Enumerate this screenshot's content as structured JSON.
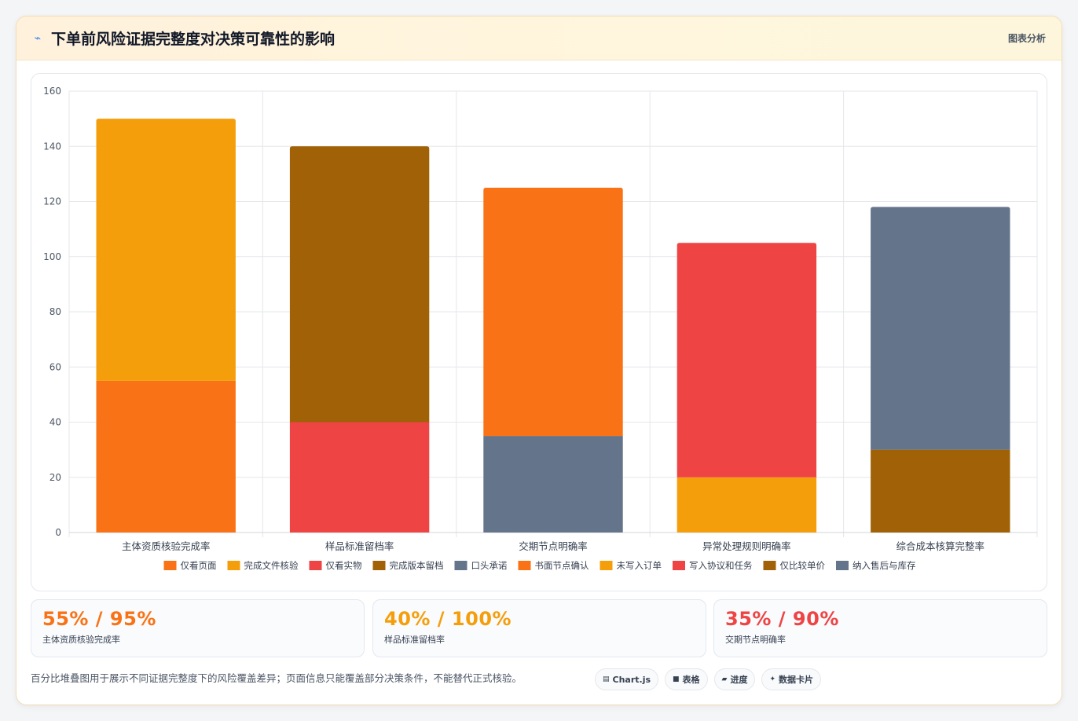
{
  "header": {
    "title": "下单前风险证据完整度对决策可靠性的影响",
    "title_icon": "bolt-icon",
    "link_label": "图表分析"
  },
  "chart_data": {
    "type": "bar",
    "stacked": true,
    "categories": [
      "主体资质核验完成率",
      "样品标准留档率",
      "交期节点明确率",
      "异常处理规则明确率",
      "综合成本核算完整率"
    ],
    "ylim": [
      0,
      160
    ],
    "yticks": [
      0,
      20,
      40,
      60,
      80,
      100,
      120,
      140,
      160
    ],
    "grid": true,
    "legend_position": "bottom",
    "series": [
      {
        "name": "仅看页面",
        "color": "#f97316",
        "values": [
          55,
          null,
          null,
          null,
          null
        ]
      },
      {
        "name": "完成文件核验",
        "color": "#f59e0b",
        "values": [
          95,
          null,
          null,
          null,
          null
        ]
      },
      {
        "name": "仅看实物",
        "color": "#ef4444",
        "values": [
          null,
          40,
          null,
          null,
          null
        ]
      },
      {
        "name": "完成版本留档",
        "color": "#a16207",
        "values": [
          null,
          100,
          null,
          null,
          null
        ]
      },
      {
        "name": "口头承诺",
        "color": "#64748b",
        "values": [
          null,
          null,
          35,
          null,
          null
        ]
      },
      {
        "name": "书面节点确认",
        "color": "#f97316",
        "values": [
          null,
          null,
          90,
          null,
          null
        ]
      },
      {
        "name": "未写入订单",
        "color": "#f59e0b",
        "values": [
          null,
          null,
          null,
          20,
          null
        ]
      },
      {
        "name": "写入协议和任务",
        "color": "#ef4444",
        "values": [
          null,
          null,
          null,
          85,
          null
        ]
      },
      {
        "name": "仅比较单价",
        "color": "#a16207",
        "values": [
          null,
          null,
          null,
          null,
          30
        ]
      },
      {
        "name": "纳入售后与库存",
        "color": "#64748b",
        "values": [
          null,
          null,
          null,
          null,
          88
        ]
      }
    ]
  },
  "kpis": [
    {
      "value": "55% / 95%",
      "label": "主体资质核验完成率",
      "color": "#f97316"
    },
    {
      "value": "40% / 100%",
      "label": "样品标准留档率",
      "color": "#f59e0b"
    },
    {
      "value": "35% / 90%",
      "label": "交期节点明确率",
      "color": "#ef4444"
    }
  ],
  "footer": {
    "note": "百分比堆叠图用于展示不同证据完整度下的风险覆盖差异；页面信息只能覆盖部分决策条件，不能替代正式核验。",
    "pills": [
      {
        "label": "Chart.js",
        "icon": "chart-icon"
      },
      {
        "label": "表格",
        "icon": "table-icon"
      },
      {
        "label": "进度",
        "icon": "progress-icon"
      },
      {
        "label": "数据卡片",
        "icon": "sparkle-icon"
      }
    ]
  }
}
